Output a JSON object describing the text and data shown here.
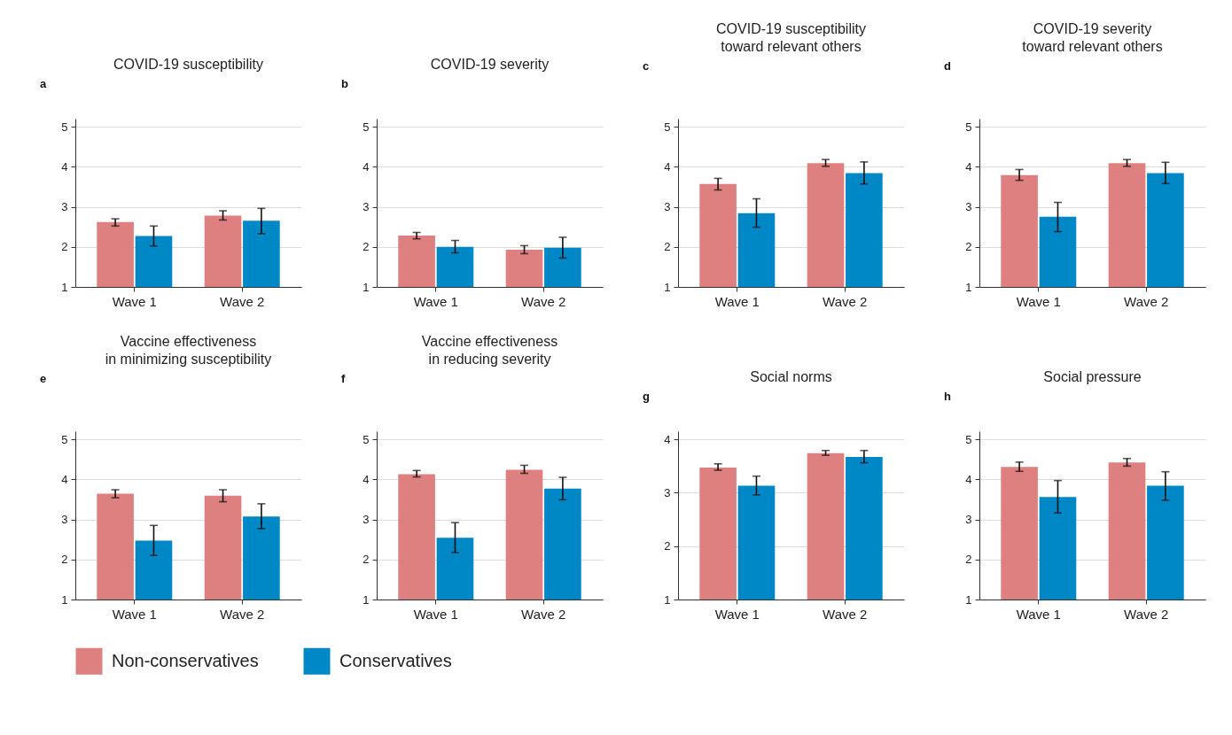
{
  "chart_data": [
    {
      "type": "bar",
      "title": "COVID-19 susceptibility",
      "annotations": [
        "a"
      ],
      "categories": [
        "Wave 1",
        "Wave 2"
      ],
      "ylim": [
        1,
        5.2
      ],
      "yticks": [
        1,
        2,
        3,
        4,
        5
      ],
      "grid": "y",
      "legend": "bottom",
      "series": [
        {
          "name": "Non-conservatives",
          "color": "#de8080",
          "values": [
            2.62,
            2.78
          ],
          "errors": [
            [
              2.52,
              2.7
            ],
            [
              2.67,
              2.9
            ]
          ]
        },
        {
          "name": "Conservatives",
          "color": "#0088c6",
          "values": [
            2.27,
            2.65
          ],
          "errors": [
            [
              2.02,
              2.52
            ],
            [
              2.33,
              2.96
            ]
          ]
        }
      ]
    },
    {
      "type": "bar",
      "title": "COVID-19 severity",
      "annotations": [
        "b"
      ],
      "categories": [
        "Wave 1",
        "Wave 2"
      ],
      "ylim": [
        1,
        5.2
      ],
      "yticks": [
        1,
        2,
        3,
        4,
        5
      ],
      "grid": "y",
      "legend": "bottom",
      "series": [
        {
          "name": "Non-conservatives",
          "color": "#de8080",
          "values": [
            2.28,
            1.93
          ],
          "errors": [
            [
              2.2,
              2.36
            ],
            [
              1.83,
              2.03
            ]
          ]
        },
        {
          "name": "Conservatives",
          "color": "#0088c6",
          "values": [
            2.0,
            1.98
          ],
          "errors": [
            [
              1.85,
              2.16
            ],
            [
              1.72,
              2.24
            ]
          ]
        }
      ]
    },
    {
      "type": "bar",
      "title": "COVID-19 susceptibility\ntoward relevant others",
      "annotations": [
        "c"
      ],
      "categories": [
        "Wave 1",
        "Wave 2"
      ],
      "ylim": [
        1,
        5.2
      ],
      "yticks": [
        1,
        2,
        3,
        4,
        5
      ],
      "grid": "y",
      "legend": "bottom",
      "series": [
        {
          "name": "Non-conservatives",
          "color": "#de8080",
          "values": [
            3.57,
            4.09
          ],
          "errors": [
            [
              3.42,
              3.71
            ],
            [
              4.01,
              4.18
            ]
          ]
        },
        {
          "name": "Conservatives",
          "color": "#0088c6",
          "values": [
            2.84,
            3.84
          ],
          "errors": [
            [
              2.49,
              3.2
            ],
            [
              3.57,
              4.12
            ]
          ]
        }
      ]
    },
    {
      "type": "bar",
      "title": "COVID-19 severity\ntoward relevant others",
      "annotations": [
        "d"
      ],
      "categories": [
        "Wave 1",
        "Wave 2"
      ],
      "ylim": [
        1,
        5.2
      ],
      "yticks": [
        1,
        2,
        3,
        4,
        5
      ],
      "grid": "y",
      "legend": "bottom",
      "series": [
        {
          "name": "Non-conservatives",
          "color": "#de8080",
          "values": [
            3.79,
            4.09
          ],
          "errors": [
            [
              3.66,
              3.93
            ],
            [
              4.01,
              4.18
            ]
          ]
        },
        {
          "name": "Conservatives",
          "color": "#0088c6",
          "values": [
            2.75,
            3.84
          ],
          "errors": [
            [
              2.38,
              3.11
            ],
            [
              3.58,
              4.11
            ]
          ]
        }
      ]
    },
    {
      "type": "bar",
      "title": "Vaccine effectiveness\nin minimizing susceptibility",
      "annotations": [
        "e"
      ],
      "categories": [
        "Wave 1",
        "Wave 2"
      ],
      "ylim": [
        1,
        5.2
      ],
      "yticks": [
        1,
        2,
        3,
        4,
        5
      ],
      "grid": "y",
      "legend": "bottom",
      "series": [
        {
          "name": "Non-conservatives",
          "color": "#de8080",
          "values": [
            3.64,
            3.59
          ],
          "errors": [
            [
              3.54,
              3.74
            ],
            [
              3.44,
              3.74
            ]
          ]
        },
        {
          "name": "Conservatives",
          "color": "#0088c6",
          "values": [
            2.47,
            3.07
          ],
          "errors": [
            [
              2.1,
              2.85
            ],
            [
              2.77,
              3.39
            ]
          ]
        }
      ]
    },
    {
      "type": "bar",
      "title": "Vaccine effectiveness\nin reducing severity",
      "annotations": [
        "f"
      ],
      "categories": [
        "Wave 1",
        "Wave 2"
      ],
      "ylim": [
        1,
        5.2
      ],
      "yticks": [
        1,
        2,
        3,
        4,
        5
      ],
      "grid": "y",
      "legend": "bottom",
      "series": [
        {
          "name": "Non-conservatives",
          "color": "#de8080",
          "values": [
            4.13,
            4.24
          ],
          "errors": [
            [
              4.06,
              4.22
            ],
            [
              4.15,
              4.35
            ]
          ]
        },
        {
          "name": "Conservatives",
          "color": "#0088c6",
          "values": [
            2.54,
            3.77
          ],
          "errors": [
            [
              2.17,
              2.92
            ],
            [
              3.49,
              4.05
            ]
          ]
        }
      ]
    },
    {
      "type": "bar",
      "title": "Social norms",
      "annotations": [
        "g"
      ],
      "categories": [
        "Wave 1",
        "Wave 2"
      ],
      "ylim": [
        1,
        4.15
      ],
      "yticks": [
        1,
        2,
        3,
        4
      ],
      "grid": "y",
      "legend": "bottom",
      "series": [
        {
          "name": "Non-conservatives",
          "color": "#de8080",
          "values": [
            3.47,
            3.74
          ],
          "errors": [
            [
              3.42,
              3.54
            ],
            [
              3.7,
              3.79
            ]
          ]
        },
        {
          "name": "Conservatives",
          "color": "#0088c6",
          "values": [
            3.13,
            3.67
          ],
          "errors": [
            [
              2.96,
              3.31
            ],
            [
              3.56,
              3.79
            ]
          ]
        }
      ]
    },
    {
      "type": "bar",
      "title": "Social pressure",
      "annotations": [
        "h"
      ],
      "categories": [
        "Wave 1",
        "Wave 2"
      ],
      "ylim": [
        1,
        5.2
      ],
      "yticks": [
        1,
        2,
        3,
        4,
        5
      ],
      "grid": "y",
      "legend": "bottom",
      "series": [
        {
          "name": "Non-conservatives",
          "color": "#de8080",
          "values": [
            4.31,
            4.42
          ],
          "errors": [
            [
              4.2,
              4.43
            ],
            [
              4.33,
              4.52
            ]
          ]
        },
        {
          "name": "Conservatives",
          "color": "#0088c6",
          "values": [
            3.56,
            3.84
          ],
          "errors": [
            [
              3.16,
              3.97
            ],
            [
              3.48,
              4.19
            ]
          ]
        }
      ]
    }
  ]
}
